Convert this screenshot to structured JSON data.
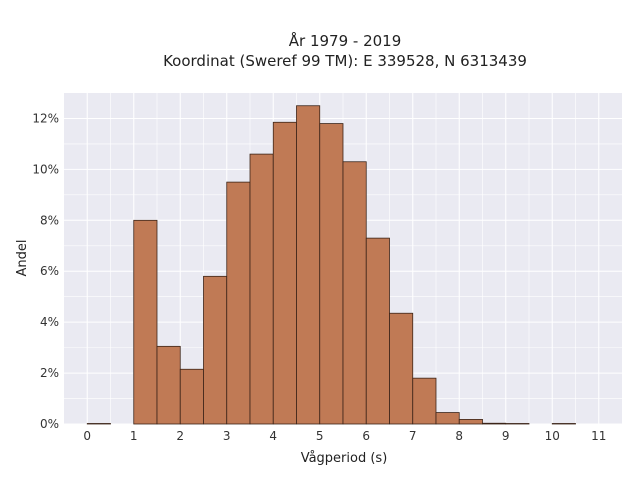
{
  "chart_data": {
    "type": "bar",
    "title": "År 1979 - 2019",
    "subtitle": "Koordinat (Sweref 99 TM): E 339528, N 6313439",
    "xlabel": "Vågperiod (s)",
    "ylabel": "Andel",
    "xlim": [
      -0.5,
      11.5
    ],
    "ylim": [
      0,
      13
    ],
    "xticks": [
      0,
      1,
      2,
      3,
      4,
      5,
      6,
      7,
      8,
      9,
      10,
      11
    ],
    "yticks": [
      0,
      2,
      4,
      6,
      8,
      10,
      12
    ],
    "ytick_suffix": "%",
    "bin_width": 0.5,
    "bins_start": [
      0.0,
      0.5,
      1.0,
      1.5,
      2.0,
      2.5,
      3.0,
      3.5,
      4.0,
      4.5,
      5.0,
      5.5,
      6.0,
      6.5,
      7.0,
      7.5,
      8.0,
      8.5,
      9.0,
      9.5,
      10.0,
      10.5
    ],
    "values": [
      0.02,
      0.0,
      8.0,
      3.05,
      2.15,
      5.8,
      9.5,
      10.6,
      11.85,
      12.5,
      11.8,
      10.3,
      7.3,
      4.35,
      1.8,
      0.45,
      0.18,
      0.03,
      0.02,
      0.0,
      0.02,
      0.0
    ],
    "grid": true,
    "colors": {
      "bar_fill": "#C07A55",
      "bar_edge": "#3b2418",
      "plot_background": "#EAEAF2",
      "grid": "#ffffff"
    }
  }
}
